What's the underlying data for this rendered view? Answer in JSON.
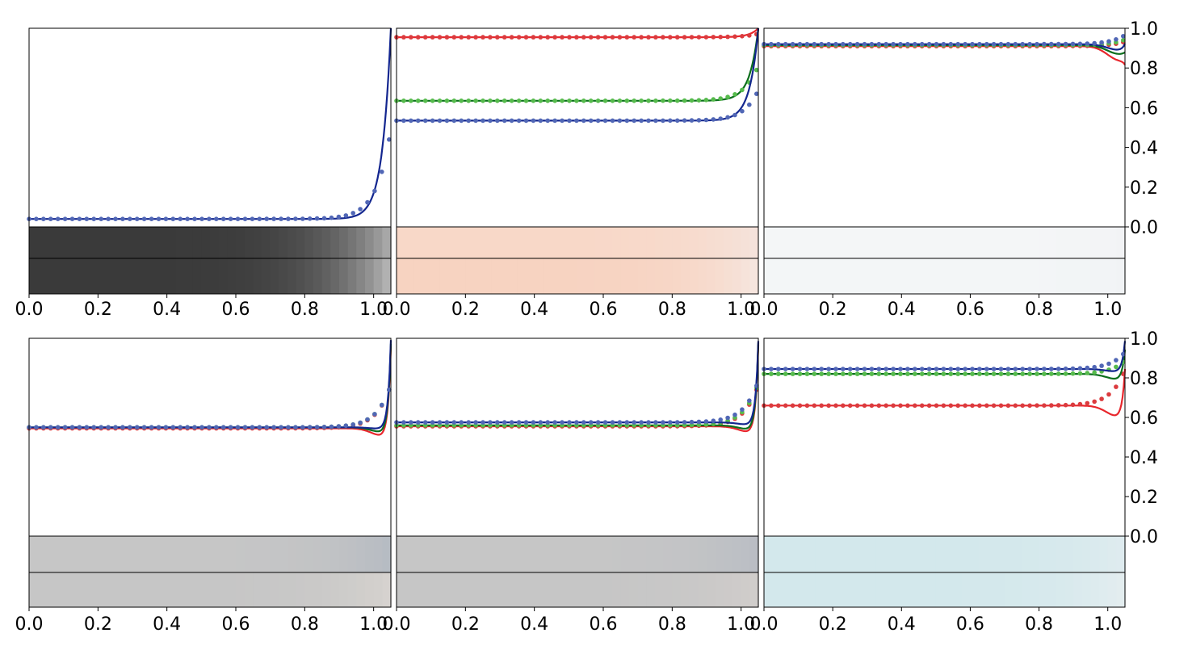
{
  "colors": {
    "red": "#e8262c",
    "green": "#0b6e1c",
    "blue": "#13268f",
    "red_dot": "#db3b3e",
    "green_dot": "#56bb4c",
    "blue_dot": "#5167b6"
  },
  "x_ticks": [
    "0.0",
    "0.2",
    "0.4",
    "0.6",
    "0.8",
    "1.0"
  ],
  "y_ticks": [
    "0.0",
    "0.2",
    "0.4",
    "0.6",
    "0.8",
    "1.0"
  ],
  "chart_data": [
    {
      "type": "line",
      "panel": "top-left",
      "xlim": [
        0,
        1.0
      ],
      "ylim": [
        0,
        1.0
      ],
      "series": [
        {
          "color": "blue",
          "plateau": 0.04,
          "end_line": 1.0,
          "end_dots": 0.44
        }
      ],
      "strip_colors": {
        "top": [
          "#3a3a3a",
          "#b8b8b8"
        ],
        "bottom": [
          "#3a3a3a",
          "#c4c4c4"
        ]
      }
    },
    {
      "type": "line",
      "panel": "top-middle",
      "xlim": [
        0,
        1.0
      ],
      "ylim": [
        0,
        1.0
      ],
      "series": [
        {
          "color": "red",
          "plateau": 0.955,
          "end_line": 1.0,
          "end_dots": 0.97
        },
        {
          "color": "green",
          "plateau": 0.635,
          "end_line": 1.0,
          "end_dots": 0.79
        },
        {
          "color": "blue",
          "plateau": 0.535,
          "end_line": 1.0,
          "end_dots": 0.67
        }
      ],
      "strip_colors": {
        "top": [
          "#f8d8c8",
          "#f4e4de"
        ],
        "bottom": [
          "#f7d3c1",
          "#f6e8e2"
        ]
      }
    },
    {
      "type": "line",
      "panel": "top-right",
      "xlim": [
        0,
        1.0
      ],
      "ylim": [
        0,
        1.0
      ],
      "series": [
        {
          "color": "red",
          "plateau": 0.91,
          "dip": 0.84,
          "end_line": 0.88,
          "end_dots": 0.93
        },
        {
          "color": "green",
          "plateau": 0.915,
          "dip": 0.87,
          "end_line": 0.92,
          "end_dots": 0.94
        },
        {
          "color": "blue",
          "plateau": 0.92,
          "dip": 0.89,
          "end_line": 0.95,
          "end_dots": 0.96
        }
      ],
      "strip_colors": {
        "top": [
          "#f4f6f7",
          "#f2f3f5"
        ],
        "bottom": [
          "#f3f6f7",
          "#f1f3f5"
        ]
      }
    },
    {
      "type": "line",
      "panel": "bottom-left",
      "xlim": [
        0,
        1.0
      ],
      "ylim": [
        0,
        1.0
      ],
      "series": [
        {
          "color": "red",
          "plateau": 0.545,
          "dip": 0.5,
          "end_line": 1.0,
          "end_dots": 0.74
        },
        {
          "color": "green",
          "plateau": 0.55,
          "dip": 0.52,
          "end_line": 1.0,
          "end_dots": 0.74
        },
        {
          "color": "blue",
          "plateau": 0.55,
          "dip": 0.54,
          "end_line": 1.0,
          "end_dots": 0.74
        }
      ],
      "strip_colors": {
        "top": [
          "#c6c6c6",
          "#b4bac2"
        ],
        "bottom": [
          "#c6c6c6",
          "#d8d4d0"
        ]
      }
    },
    {
      "type": "line",
      "panel": "bottom-middle",
      "xlim": [
        0,
        1.0
      ],
      "ylim": [
        0,
        1.0
      ],
      "series": [
        {
          "color": "red",
          "plateau": 0.555,
          "dip": 0.52,
          "end_line": 1.0,
          "end_dots": 0.74
        },
        {
          "color": "green",
          "plateau": 0.56,
          "dip": 0.535,
          "end_line": 1.0,
          "end_dots": 0.75
        },
        {
          "color": "blue",
          "plateau": 0.575,
          "dip": 0.56,
          "end_line": 1.0,
          "end_dots": 0.76
        }
      ],
      "strip_colors": {
        "top": [
          "#c6c6c6",
          "#b8bcc4"
        ],
        "bottom": [
          "#c6c6c6",
          "#d2cecc"
        ]
      }
    },
    {
      "type": "line",
      "panel": "bottom-right",
      "xlim": [
        0,
        1.0
      ],
      "ylim": [
        0,
        1.0
      ],
      "series": [
        {
          "color": "red",
          "plateau": 0.66,
          "dip": 0.6,
          "end_line": 0.9,
          "end_dots": 0.82
        },
        {
          "color": "green",
          "plateau": 0.82,
          "dip": 0.79,
          "end_line": 0.97,
          "end_dots": 0.88
        },
        {
          "color": "blue",
          "plateau": 0.845,
          "dip": 0.83,
          "end_line": 1.0,
          "end_dots": 0.92
        }
      ],
      "strip_colors": {
        "top": [
          "#d3e8ec",
          "#e0ecef"
        ],
        "bottom": [
          "#d3e8ec",
          "#e6eef0"
        ]
      }
    }
  ]
}
